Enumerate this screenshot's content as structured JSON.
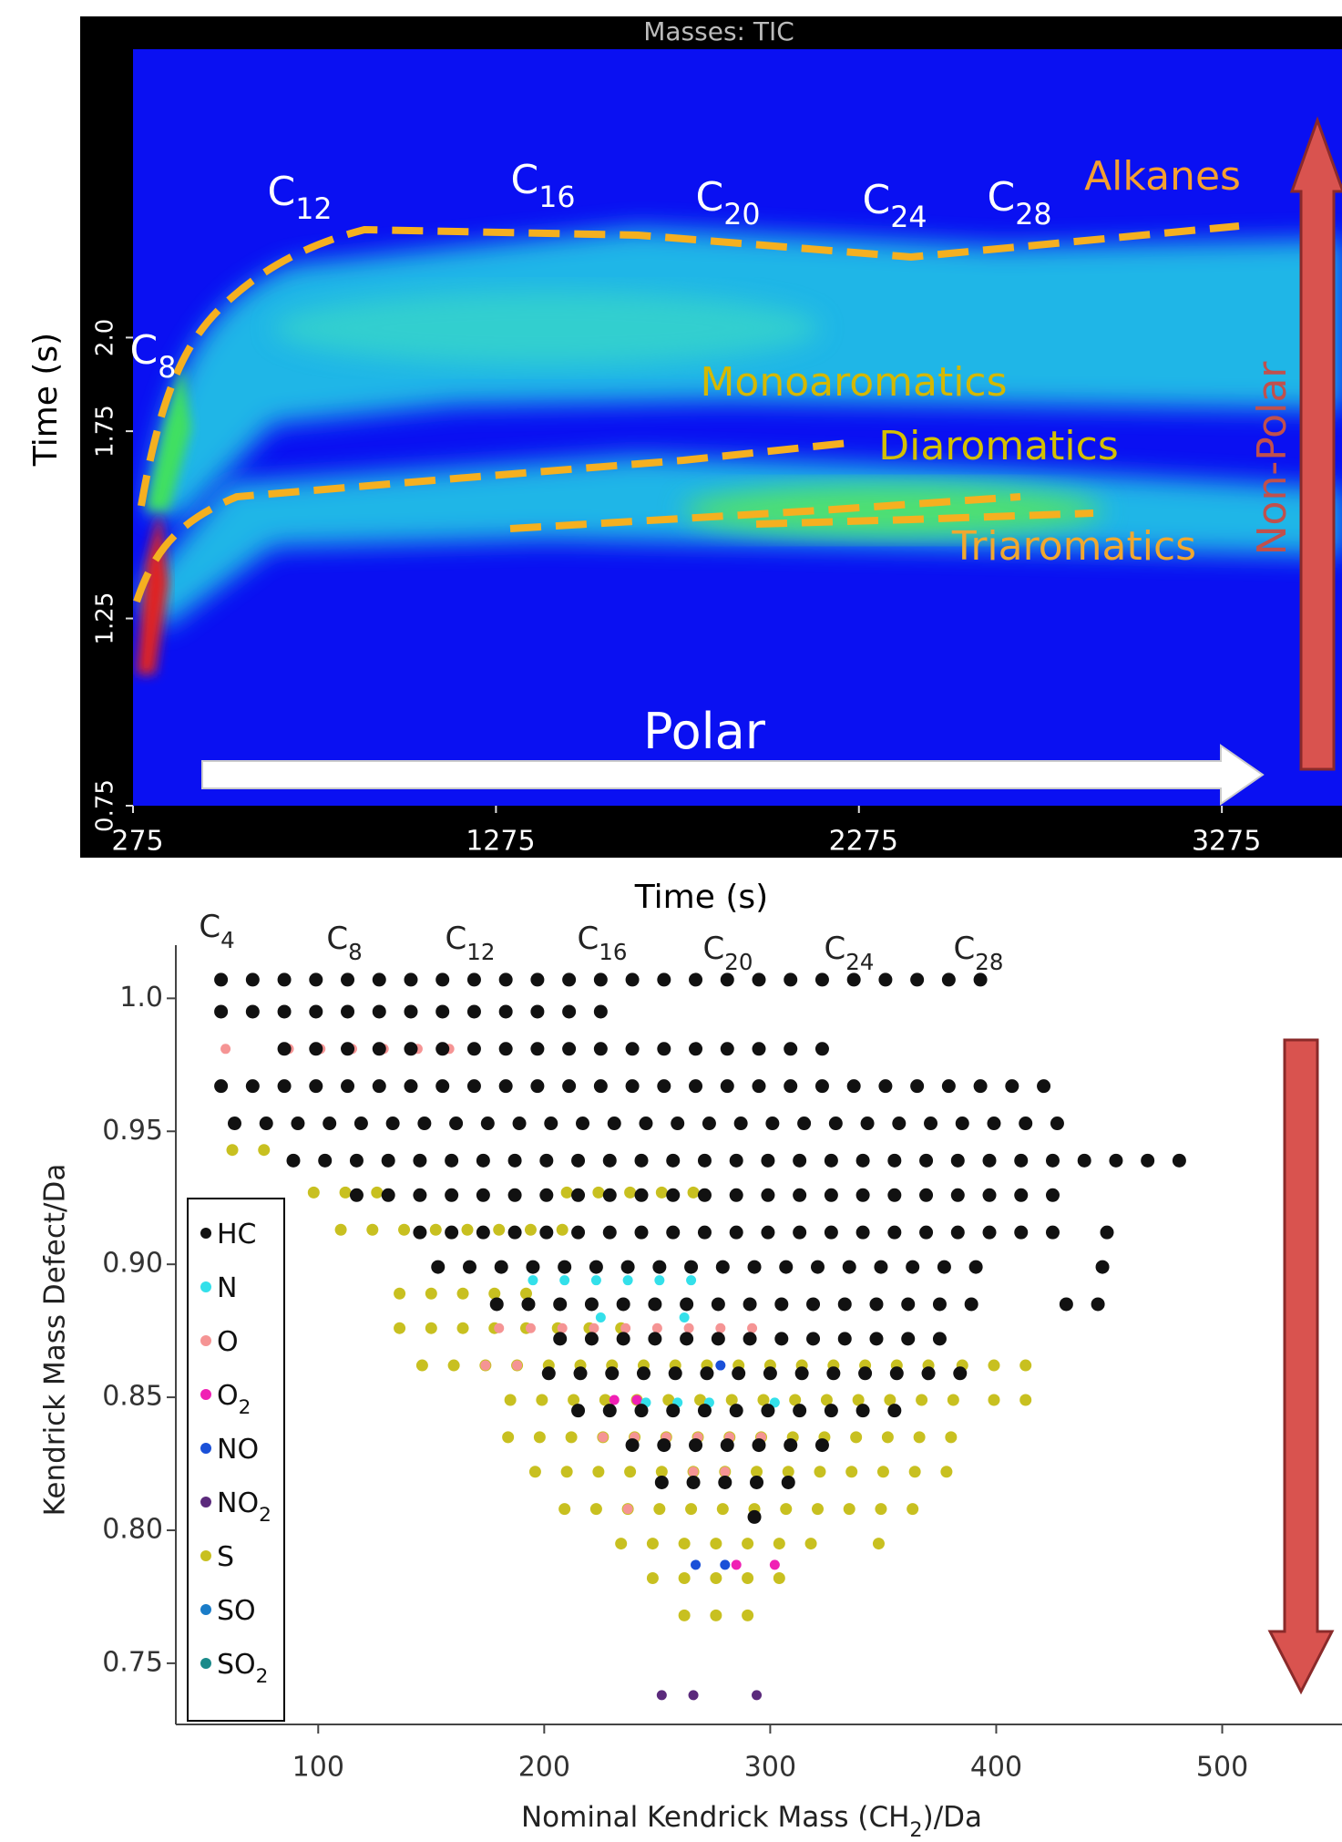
{
  "chart_data": [
    {
      "type": "heatmap",
      "title": "Masses: TIC",
      "xlabel": "Time (s)",
      "ylabel": "Time (s)",
      "xlim": [
        275,
        3606
      ],
      "xticks": [
        275,
        1275,
        2275,
        3275
      ],
      "ylim": [
        0.75,
        2.77
      ],
      "yticks": [
        0.75,
        1.25,
        1.75,
        {
          "value": 2,
          "label": "2.0"
        }
      ],
      "annotations": [
        "C8",
        "C12",
        "C16",
        "C20",
        "C24",
        "C28",
        "Alkanes",
        "Monoaromatics",
        "Diaromatics",
        "Triaromatics",
        "Polar",
        "Non-Polar"
      ]
    },
    {
      "type": "scatter",
      "xlabel": "Nominal Kendrick Mass (CH2)/Da",
      "ylabel": "Kendrick Mass Defect/Da",
      "xlim": [
        37,
        553
      ],
      "xticks": [
        100,
        200,
        300,
        400,
        500
      ],
      "ylim": [
        0.727,
        1.02
      ],
      "yticks": [
        {
          "value": 1,
          "label": "1.0"
        },
        0.95,
        {
          "value": 0.9,
          "label": "0.90"
        },
        0.85,
        {
          "value": 0.8,
          "label": "0.80"
        },
        0.75
      ],
      "legend": "lower left",
      "annotations": [
        "C4",
        "C8",
        "C12",
        "C16",
        "C20",
        "C24",
        "C28"
      ],
      "series": [
        {
          "name": "HC",
          "color": "#111111",
          "x": [
            57,
            71,
            85,
            99,
            113,
            127,
            141,
            155,
            169,
            183,
            197,
            211,
            225,
            239,
            253,
            267,
            281,
            295,
            309,
            323,
            337,
            351,
            365,
            379,
            393,
            57,
            71,
            85,
            99,
            113,
            127,
            141,
            155,
            169,
            183,
            197,
            211,
            225,
            85,
            99,
            113,
            127,
            141,
            155,
            169,
            183,
            197,
            211,
            225,
            239,
            253,
            267,
            281,
            295,
            309,
            323,
            57,
            71,
            85,
            99,
            113,
            127,
            141,
            155,
            169,
            183,
            197,
            211,
            225,
            239,
            253,
            267,
            281,
            295,
            309,
            323,
            337,
            351,
            365,
            379,
            393,
            407,
            421,
            63,
            77,
            91,
            105,
            119,
            133,
            147,
            161,
            175,
            189,
            203,
            217,
            231,
            245,
            259,
            273,
            287,
            301,
            315,
            329,
            343,
            357,
            371,
            385,
            399,
            413,
            427,
            89,
            103,
            117,
            131,
            145,
            159,
            173,
            187,
            201,
            215,
            229,
            243,
            257,
            271,
            285,
            299,
            313,
            327,
            341,
            355,
            369,
            383,
            397,
            411,
            425,
            439,
            453,
            467,
            481,
            117,
            131,
            145,
            159,
            173,
            187,
            201,
            215,
            229,
            243,
            257,
            271,
            285,
            299,
            313,
            327,
            341,
            355,
            369,
            383,
            397,
            411,
            425,
            145,
            159,
            173,
            187,
            201,
            215,
            229,
            243,
            257,
            271,
            285,
            299,
            313,
            327,
            341,
            355,
            369,
            383,
            397,
            411,
            425,
            449,
            153,
            167,
            181,
            195,
            209,
            223,
            237,
            251,
            265,
            279,
            293,
            307,
            321,
            335,
            349,
            363,
            377,
            391,
            447,
            179,
            193,
            207,
            221,
            235,
            249,
            263,
            277,
            291,
            305,
            319,
            333,
            347,
            361,
            375,
            389,
            431,
            445,
            207,
            221,
            235,
            249,
            263,
            277,
            291,
            305,
            319,
            333,
            347,
            361,
            375,
            202,
            216,
            230,
            244,
            258,
            272,
            286,
            300,
            314,
            328,
            342,
            356,
            370,
            384,
            215,
            229,
            243,
            257,
            271,
            285,
            299,
            313,
            327,
            341,
            355,
            239,
            253,
            267,
            281,
            295,
            309,
            323,
            252,
            266,
            280,
            294,
            308,
            293
          ],
          "values": [
            1.007,
            1.007,
            1.007,
            1.007,
            1.007,
            1.007,
            1.007,
            1.007,
            1.007,
            1.007,
            1.007,
            1.007,
            1.007,
            1.007,
            1.007,
            1.007,
            1.007,
            1.007,
            1.007,
            1.007,
            1.007,
            1.007,
            1.007,
            1.007,
            1.007,
            0.995,
            0.995,
            0.995,
            0.995,
            0.995,
            0.995,
            0.995,
            0.995,
            0.995,
            0.995,
            0.995,
            0.995,
            0.995,
            0.981,
            0.981,
            0.981,
            0.981,
            0.981,
            0.981,
            0.981,
            0.981,
            0.981,
            0.981,
            0.981,
            0.981,
            0.981,
            0.981,
            0.981,
            0.981,
            0.981,
            0.981,
            0.967,
            0.967,
            0.967,
            0.967,
            0.967,
            0.967,
            0.967,
            0.967,
            0.967,
            0.967,
            0.967,
            0.967,
            0.967,
            0.967,
            0.967,
            0.967,
            0.967,
            0.967,
            0.967,
            0.967,
            0.967,
            0.967,
            0.967,
            0.967,
            0.967,
            0.967,
            0.967,
            0.953,
            0.953,
            0.953,
            0.953,
            0.953,
            0.953,
            0.953,
            0.953,
            0.953,
            0.953,
            0.953,
            0.953,
            0.953,
            0.953,
            0.953,
            0.953,
            0.953,
            0.953,
            0.953,
            0.953,
            0.953,
            0.953,
            0.953,
            0.953,
            0.953,
            0.953,
            0.953,
            0.939,
            0.939,
            0.939,
            0.939,
            0.939,
            0.939,
            0.939,
            0.939,
            0.939,
            0.939,
            0.939,
            0.939,
            0.939,
            0.939,
            0.939,
            0.939,
            0.939,
            0.939,
            0.939,
            0.939,
            0.939,
            0.939,
            0.939,
            0.939,
            0.939,
            0.939,
            0.939,
            0.939,
            0.939,
            0.926,
            0.926,
            0.926,
            0.926,
            0.926,
            0.926,
            0.926,
            0.926,
            0.926,
            0.926,
            0.926,
            0.926,
            0.926,
            0.926,
            0.926,
            0.926,
            0.926,
            0.926,
            0.926,
            0.926,
            0.926,
            0.926,
            0.926,
            0.912,
            0.912,
            0.912,
            0.912,
            0.912,
            0.912,
            0.912,
            0.912,
            0.912,
            0.912,
            0.912,
            0.912,
            0.912,
            0.912,
            0.912,
            0.912,
            0.912,
            0.912,
            0.912,
            0.912,
            0.912,
            0.912,
            0.899,
            0.899,
            0.899,
            0.899,
            0.899,
            0.899,
            0.899,
            0.899,
            0.899,
            0.899,
            0.899,
            0.899,
            0.899,
            0.899,
            0.899,
            0.899,
            0.899,
            0.899,
            0.899,
            0.885,
            0.885,
            0.885,
            0.885,
            0.885,
            0.885,
            0.885,
            0.885,
            0.885,
            0.885,
            0.885,
            0.885,
            0.885,
            0.885,
            0.885,
            0.885,
            0.885,
            0.885,
            0.872,
            0.872,
            0.872,
            0.872,
            0.872,
            0.872,
            0.872,
            0.872,
            0.872,
            0.872,
            0.872,
            0.872,
            0.872,
            0.859,
            0.859,
            0.859,
            0.859,
            0.859,
            0.859,
            0.859,
            0.859,
            0.859,
            0.859,
            0.859,
            0.859,
            0.859,
            0.859,
            0.845,
            0.845,
            0.845,
            0.845,
            0.845,
            0.845,
            0.845,
            0.845,
            0.845,
            0.845,
            0.845,
            0.832,
            0.832,
            0.832,
            0.832,
            0.832,
            0.832,
            0.832,
            0.818,
            0.818,
            0.818,
            0.818,
            0.818,
            0.805
          ]
        },
        {
          "name": "N",
          "color": "#33e0ea",
          "x": [
            195,
            209,
            223,
            237,
            251,
            265,
            225,
            262,
            245,
            259,
            273,
            302
          ],
          "values": [
            0.894,
            0.894,
            0.894,
            0.894,
            0.894,
            0.894,
            0.88,
            0.88,
            0.848,
            0.848,
            0.848,
            0.848
          ]
        },
        {
          "name": "O",
          "color": "#f59494",
          "x": [
            59,
            87,
            101,
            115,
            129,
            144,
            158,
            180,
            194,
            208,
            222,
            236,
            250,
            264,
            278,
            292,
            174,
            188,
            226,
            240,
            254,
            268,
            282,
            296,
            266,
            280,
            237
          ],
          "values": [
            0.981,
            0.981,
            0.981,
            0.981,
            0.981,
            0.981,
            0.981,
            0.876,
            0.876,
            0.876,
            0.876,
            0.876,
            0.876,
            0.876,
            0.876,
            0.876,
            0.862,
            0.862,
            0.835,
            0.835,
            0.835,
            0.835,
            0.835,
            0.835,
            0.822,
            0.822,
            0.808
          ]
        },
        {
          "name": "O2",
          "color": "#f020b4",
          "x": [
            231,
            241,
            285,
            302
          ],
          "values": [
            0.849,
            0.849,
            0.787,
            0.787
          ]
        },
        {
          "name": "NO",
          "color": "#1a50d8",
          "x": [
            278,
            267,
            280
          ],
          "values": [
            0.862,
            0.787,
            0.787
          ]
        },
        {
          "name": "NO2",
          "color": "#5b2a7c",
          "x": [
            252,
            266,
            294
          ],
          "values": [
            0.738,
            0.738,
            0.738
          ]
        },
        {
          "name": "S",
          "color": "#c8c020",
          "x": [
            62,
            76,
            98,
            112,
            126,
            210,
            224,
            238,
            252,
            266,
            110,
            124,
            138,
            152,
            166,
            180,
            194,
            208,
            136,
            150,
            164,
            178,
            192,
            136,
            150,
            164,
            178,
            192,
            206,
            220,
            234,
            146,
            160,
            174,
            188,
            202,
            216,
            230,
            244,
            258,
            272,
            286,
            300,
            314,
            328,
            342,
            356,
            370,
            385,
            399,
            413,
            185,
            199,
            213,
            227,
            241,
            255,
            269,
            283,
            297,
            311,
            325,
            339,
            353,
            367,
            381,
            399,
            413,
            184,
            198,
            212,
            226,
            240,
            254,
            268,
            282,
            296,
            310,
            324,
            338,
            352,
            366,
            380,
            196,
            210,
            224,
            238,
            252,
            266,
            280,
            294,
            308,
            322,
            336,
            350,
            364,
            378,
            209,
            223,
            237,
            251,
            265,
            279,
            293,
            307,
            321,
            335,
            349,
            363,
            234,
            248,
            262,
            276,
            290,
            304,
            318,
            348,
            248,
            262,
            276,
            290,
            304,
            262,
            276,
            290
          ],
          "values": [
            0.943,
            0.943,
            0.927,
            0.927,
            0.927,
            0.927,
            0.927,
            0.927,
            0.927,
            0.927,
            0.913,
            0.913,
            0.913,
            0.913,
            0.913,
            0.913,
            0.913,
            0.913,
            0.889,
            0.889,
            0.889,
            0.889,
            0.889,
            0.876,
            0.876,
            0.876,
            0.876,
            0.876,
            0.876,
            0.876,
            0.876,
            0.862,
            0.862,
            0.862,
            0.862,
            0.862,
            0.862,
            0.862,
            0.862,
            0.862,
            0.862,
            0.862,
            0.862,
            0.862,
            0.862,
            0.862,
            0.862,
            0.862,
            0.862,
            0.862,
            0.862,
            0.849,
            0.849,
            0.849,
            0.849,
            0.849,
            0.849,
            0.849,
            0.849,
            0.849,
            0.849,
            0.849,
            0.849,
            0.849,
            0.849,
            0.849,
            0.849,
            0.849,
            0.835,
            0.835,
            0.835,
            0.835,
            0.835,
            0.835,
            0.835,
            0.835,
            0.835,
            0.835,
            0.835,
            0.835,
            0.835,
            0.835,
            0.835,
            0.822,
            0.822,
            0.822,
            0.822,
            0.822,
            0.822,
            0.822,
            0.822,
            0.822,
            0.822,
            0.822,
            0.822,
            0.822,
            0.822,
            0.808,
            0.808,
            0.808,
            0.808,
            0.808,
            0.808,
            0.808,
            0.808,
            0.808,
            0.808,
            0.808,
            0.808,
            0.795,
            0.795,
            0.795,
            0.795,
            0.795,
            0.795,
            0.795,
            0.795,
            0.782,
            0.782,
            0.782,
            0.782,
            0.782,
            0.768,
            0.768,
            0.768
          ]
        },
        {
          "name": "SO",
          "color": "#1a7cc8",
          "x": [],
          "values": []
        },
        {
          "name": "SO2",
          "color": "#1a8a8a",
          "x": [],
          "values": []
        }
      ]
    }
  ]
}
